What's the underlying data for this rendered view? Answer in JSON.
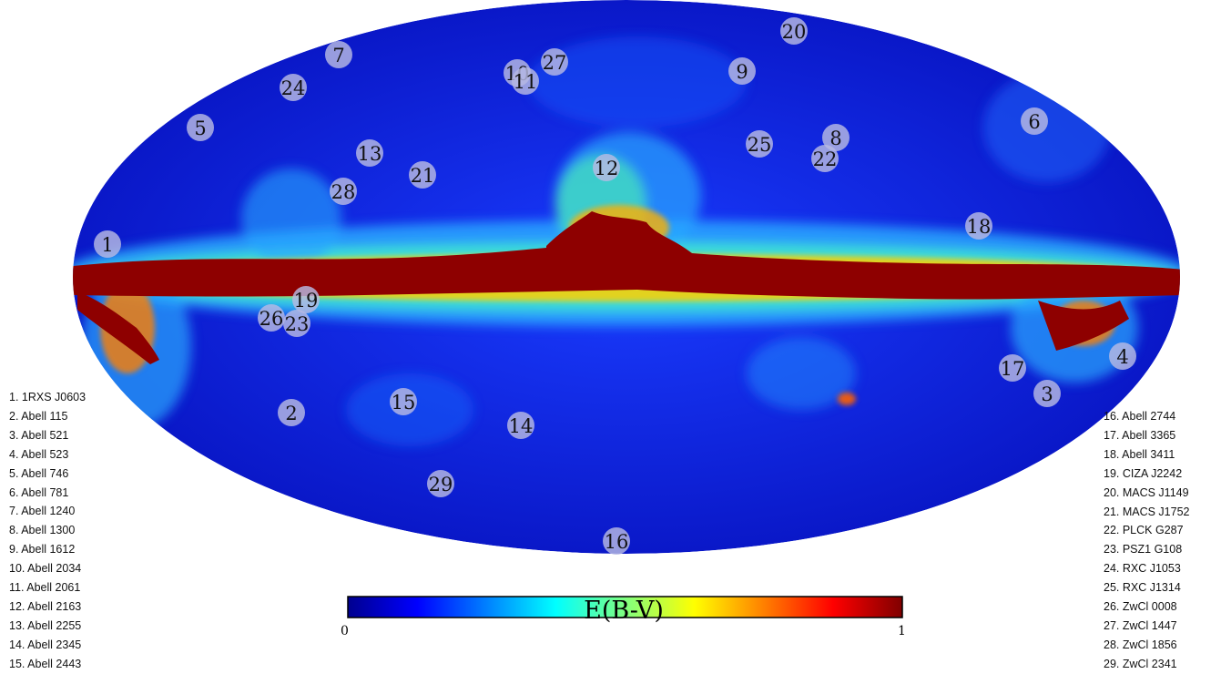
{
  "map": {
    "colorbar_stops": [
      "#00008f",
      "#0000ff",
      "#0080ff",
      "#00ffff",
      "#80ff80",
      "#ffff00",
      "#ff8000",
      "#ff0000",
      "#800000"
    ],
    "colorbar_min": "0",
    "colorbar_max": "1",
    "colorbar_label": "E(B-V)",
    "marker_color": "#b7b9e3",
    "background_color": "#0a1fd8",
    "dust_color": "#8e0000"
  },
  "markers": [
    {
      "id": 1,
      "label": "1"
    },
    {
      "id": 2,
      "label": "2"
    },
    {
      "id": 3,
      "label": "3"
    },
    {
      "id": 4,
      "label": "4"
    },
    {
      "id": 5,
      "label": "5"
    },
    {
      "id": 6,
      "label": "6"
    },
    {
      "id": 7,
      "label": "7"
    },
    {
      "id": 8,
      "label": "8"
    },
    {
      "id": 9,
      "label": "9"
    },
    {
      "id": 10,
      "label": "10"
    },
    {
      "id": 11,
      "label": "11"
    },
    {
      "id": 12,
      "label": "12"
    },
    {
      "id": 13,
      "label": "13"
    },
    {
      "id": 14,
      "label": "14"
    },
    {
      "id": 15,
      "label": "15"
    },
    {
      "id": 16,
      "label": "16"
    },
    {
      "id": 17,
      "label": "17"
    },
    {
      "id": 18,
      "label": "18"
    },
    {
      "id": 19,
      "label": "19"
    },
    {
      "id": 20,
      "label": "20"
    },
    {
      "id": 21,
      "label": "21"
    },
    {
      "id": 22,
      "label": "22"
    },
    {
      "id": 23,
      "label": "23"
    },
    {
      "id": 24,
      "label": "24"
    },
    {
      "id": 25,
      "label": "25"
    },
    {
      "id": 26,
      "label": "26"
    },
    {
      "id": 27,
      "label": "27"
    },
    {
      "id": 28,
      "label": "28"
    },
    {
      "id": 29,
      "label": "29"
    }
  ],
  "legend_left": [
    "1. 1RXS J0603",
    "2. Abell 115",
    "3. Abell 521",
    "4. Abell 523",
    "5. Abell 746",
    "6. Abell 781",
    "7. Abell 1240",
    "8. Abell 1300",
    "9. Abell 1612",
    "10. Abell 2034",
    "11. Abell 2061",
    "12. Abell 2163",
    "13. Abell 2255",
    "14. Abell 2345",
    "15. Abell 2443"
  ],
  "legend_right": [
    "16. Abell 2744",
    "17. Abell 3365",
    "18. Abell 3411",
    "19. CIZA J2242",
    "20. MACS J1149",
    "21. MACS J1752",
    "22. PLCK G287",
    "23. PSZ1 G108",
    "24. RXC J1053",
    "25. RXC J1314",
    "26. ZwCl 0008",
    "27. ZwCl 1447",
    "28. ZwCl 1856",
    "29. ZwCl 2341"
  ]
}
